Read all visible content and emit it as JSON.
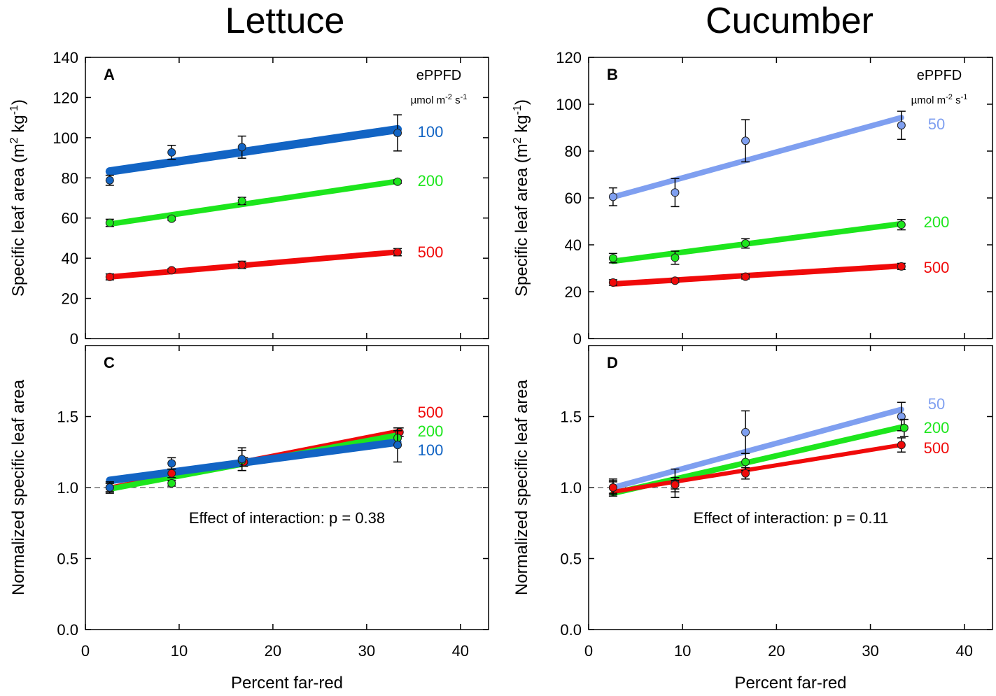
{
  "titles": {
    "left": "Lettuce",
    "right": "Cucumber"
  },
  "legend_header": "ePPFD",
  "legend_units": {
    "base": "µmol m",
    "exp1": "-2",
    "mid": " s",
    "exp2": "-1"
  },
  "ylabel_top": {
    "base": "Specific leaf area (m",
    "exp1": "2",
    "mid": " kg",
    "exp2": "-1",
    "end": ")"
  },
  "ylabel_bottom": "Normalized specific leaf area",
  "xlabel": "Percent far-red",
  "colors": {
    "50": "#7f9ff0",
    "100": "#1264c4",
    "200": "#1de61d",
    "500": "#f00a0a"
  },
  "chart_data": [
    {
      "id": "A",
      "label": "A",
      "type": "scatter",
      "crop": "Lettuce",
      "xlim": [
        0,
        43
      ],
      "ylim": [
        0,
        140
      ],
      "xticks": [
        0,
        10,
        20,
        30,
        40
      ],
      "yticks": [
        0,
        20,
        40,
        60,
        80,
        100,
        120,
        140
      ],
      "xlabel": "Percent far-red",
      "ylabel": "Specific leaf area (m2 kg-1)",
      "series": [
        {
          "name": "100",
          "x": [
            2.6,
            9.2,
            16.7,
            33.3
          ],
          "y": [
            78.8,
            92.7,
            95.3,
            102.4
          ],
          "err": [
            2.5,
            3.5,
            5.5,
            9.0
          ],
          "fit": [
            83.2,
            104.2
          ]
        },
        {
          "name": "200",
          "x": [
            2.6,
            9.2,
            16.7,
            33.3
          ],
          "y": [
            57.6,
            59.7,
            68.5,
            78.1
          ],
          "err": [
            1.8,
            0.8,
            1.8,
            0.8
          ],
          "fit": [
            57.0,
            78.3
          ]
        },
        {
          "name": "500",
          "x": [
            2.6,
            9.2,
            16.7,
            33.3
          ],
          "y": [
            30.7,
            34.0,
            36.7,
            43.0
          ],
          "err": [
            1.5,
            0.8,
            1.8,
            1.8
          ],
          "fit": [
            30.7,
            43.1
          ]
        }
      ]
    },
    {
      "id": "B",
      "label": "B",
      "type": "scatter",
      "crop": "Cucumber",
      "xlim": [
        0,
        43
      ],
      "ylim": [
        0,
        120
      ],
      "xticks": [
        0,
        10,
        20,
        30,
        40
      ],
      "yticks": [
        0,
        20,
        40,
        60,
        80,
        100,
        120
      ],
      "xlabel": "Percent far-red",
      "ylabel": "Specific leaf area (m2 kg-1)",
      "series": [
        {
          "name": "50",
          "x": [
            2.6,
            9.2,
            16.7,
            33.3
          ],
          "y": [
            60.5,
            62.3,
            84.4,
            91.0
          ],
          "err": [
            3.8,
            6.0,
            9.0,
            6.0
          ],
          "fit": [
            60.4,
            94.3
          ]
        },
        {
          "name": "200",
          "x": [
            2.6,
            9.2,
            16.7,
            33.3
          ],
          "y": [
            34.3,
            34.5,
            40.6,
            48.6
          ],
          "err": [
            2.0,
            2.8,
            2.0,
            2.2
          ],
          "fit": [
            33.0,
            49.0
          ]
        },
        {
          "name": "500",
          "x": [
            2.6,
            9.2,
            16.7,
            33.3
          ],
          "y": [
            23.9,
            24.7,
            26.4,
            30.8
          ],
          "err": [
            1.2,
            0.8,
            1.0,
            1.3
          ],
          "fit": [
            23.3,
            31.0
          ]
        }
      ]
    },
    {
      "id": "C",
      "label": "C",
      "type": "scatter",
      "crop": "Lettuce",
      "xlim": [
        0,
        43
      ],
      "ylim": [
        0,
        2.0
      ],
      "xticks": [
        0,
        10,
        20,
        30,
        40
      ],
      "yticks": [
        0.0,
        0.5,
        1.0,
        1.5
      ],
      "xlabel": "Percent far-red",
      "ylabel": "Normalized specific leaf area",
      "reference_line": 1.0,
      "annotation": "Effect of interaction: p = 0.38",
      "series": [
        {
          "name": "500",
          "x": [
            2.6,
            9.2,
            16.9,
            33.5
          ],
          "y": [
            1.0,
            1.1,
            1.18,
            1.39
          ],
          "err": [
            0.03,
            0.03,
            0.03,
            0.03
          ],
          "fit": [
            1.0,
            1.4
          ]
        },
        {
          "name": "200",
          "x": [
            2.6,
            9.2,
            16.7,
            33.3
          ],
          "y": [
            1.0,
            1.03,
            1.19,
            1.35
          ],
          "err": [
            0.03,
            0.02,
            0.07,
            0.05
          ],
          "fit": [
            0.99,
            1.37
          ]
        },
        {
          "name": "100",
          "x": [
            2.6,
            9.2,
            16.7,
            33.3
          ],
          "y": [
            1.0,
            1.17,
            1.2,
            1.3
          ],
          "err": [
            0.04,
            0.04,
            0.08,
            0.12
          ],
          "fit": [
            1.05,
            1.32
          ]
        }
      ]
    },
    {
      "id": "D",
      "label": "D",
      "type": "scatter",
      "crop": "Cucumber",
      "xlim": [
        0,
        43
      ],
      "ylim": [
        0,
        2.0
      ],
      "xticks": [
        0,
        10,
        20,
        30,
        40
      ],
      "yticks": [
        0.0,
        0.5,
        1.0,
        1.5
      ],
      "xlabel": "Percent far-red",
      "ylabel": "Normalized specific leaf area",
      "reference_line": 1.0,
      "annotation": "Effect of interaction: p = 0.11",
      "series": [
        {
          "name": "50",
          "x": [
            2.6,
            9.2,
            16.7,
            33.3
          ],
          "y": [
            1.0,
            1.03,
            1.39,
            1.5
          ],
          "err": [
            0.06,
            0.1,
            0.15,
            0.1
          ],
          "fit": [
            1.0,
            1.55
          ]
        },
        {
          "name": "200",
          "x": [
            2.6,
            9.2,
            16.7,
            33.6
          ],
          "y": [
            1.0,
            1.02,
            1.18,
            1.42
          ],
          "err": [
            0.05,
            0.05,
            0.06,
            0.06
          ],
          "fit": [
            0.96,
            1.43
          ]
        },
        {
          "name": "500",
          "x": [
            2.6,
            9.2,
            16.7,
            33.3
          ],
          "y": [
            1.0,
            1.02,
            1.1,
            1.3
          ],
          "err": [
            0.04,
            0.03,
            0.04,
            0.05
          ],
          "fit": [
            0.97,
            1.3
          ]
        }
      ]
    }
  ]
}
